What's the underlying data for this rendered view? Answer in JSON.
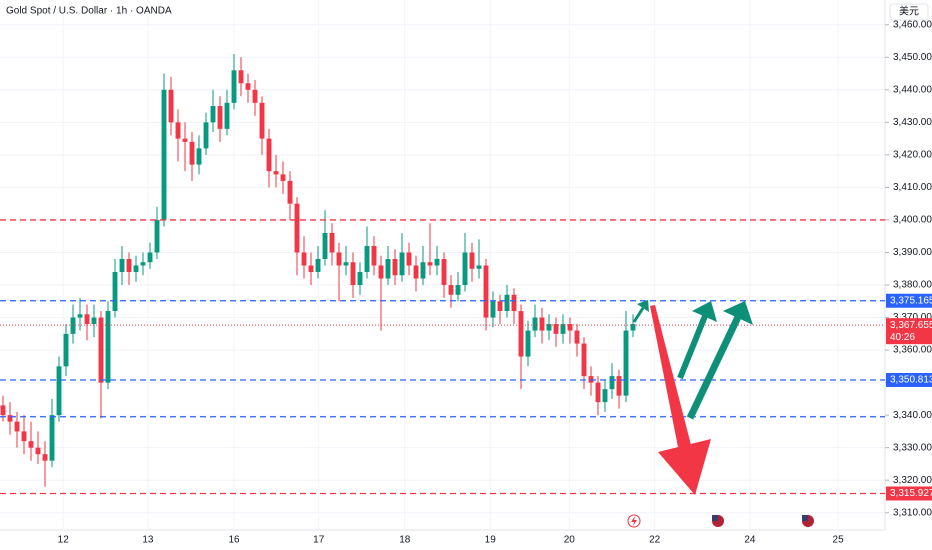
{
  "chart_data": {
    "type": "candlestick",
    "title": "Gold Spot / U.S. Dollar · 1h · OANDA",
    "currency": "美元",
    "up_color": "#089981",
    "down_color": "#f23645",
    "candles": [
      [
        3343,
        3346,
        3338,
        3340
      ],
      [
        3340,
        3344,
        3334,
        3338
      ],
      [
        3338,
        3341,
        3330,
        3335
      ],
      [
        3335,
        3340,
        3328,
        3332
      ],
      [
        3332,
        3338,
        3326,
        3330
      ],
      [
        3330,
        3335,
        3325,
        3328
      ],
      [
        3328,
        3332,
        3318,
        3326
      ],
      [
        3326,
        3345,
        3324,
        3340
      ],
      [
        3340,
        3358,
        3338,
        3355
      ],
      [
        3355,
        3368,
        3352,
        3365
      ],
      [
        3365,
        3374,
        3362,
        3370
      ],
      [
        3370,
        3376,
        3366,
        3371
      ],
      [
        3371,
        3374,
        3363,
        3368
      ],
      [
        3368,
        3374,
        3364,
        3370
      ],
      [
        3370,
        3372,
        3339,
        3350
      ],
      [
        3350,
        3375,
        3348,
        3372
      ],
      [
        3372,
        3388,
        3370,
        3384
      ],
      [
        3384,
        3392,
        3380,
        3388
      ],
      [
        3388,
        3390,
        3380,
        3384
      ],
      [
        3384,
        3389,
        3381,
        3386
      ],
      [
        3386,
        3390,
        3383,
        3387
      ],
      [
        3387,
        3393,
        3385,
        3390
      ],
      [
        3390,
        3404,
        3388,
        3400
      ],
      [
        3400,
        3445,
        3398,
        3440
      ],
      [
        3440,
        3444,
        3426,
        3430
      ],
      [
        3430,
        3434,
        3418,
        3425
      ],
      [
        3425,
        3430,
        3415,
        3424
      ],
      [
        3424,
        3427,
        3412,
        3417
      ],
      [
        3417,
        3426,
        3414,
        3422
      ],
      [
        3422,
        3433,
        3420,
        3430
      ],
      [
        3430,
        3440,
        3427,
        3435
      ],
      [
        3435,
        3438,
        3424,
        3428
      ],
      [
        3428,
        3440,
        3426,
        3436
      ],
      [
        3436,
        3451,
        3434,
        3446
      ],
      [
        3446,
        3450,
        3438,
        3442
      ],
      [
        3442,
        3445,
        3436,
        3440
      ],
      [
        3440,
        3443,
        3432,
        3436
      ],
      [
        3436,
        3438,
        3420,
        3425
      ],
      [
        3425,
        3428,
        3410,
        3415
      ],
      [
        3415,
        3420,
        3410,
        3414
      ],
      [
        3414,
        3418,
        3408,
        3412
      ],
      [
        3412,
        3415,
        3400,
        3405
      ],
      [
        3405,
        3407,
        3383,
        3390
      ],
      [
        3390,
        3395,
        3382,
        3386
      ],
      [
        3386,
        3390,
        3380,
        3384
      ],
      [
        3384,
        3392,
        3382,
        3388
      ],
      [
        3388,
        3403,
        3386,
        3396
      ],
      [
        3396,
        3399,
        3386,
        3390
      ],
      [
        3390,
        3393,
        3375,
        3386
      ],
      [
        3386,
        3392,
        3383,
        3387
      ],
      [
        3387,
        3390,
        3376,
        3380
      ],
      [
        3380,
        3387,
        3377,
        3384
      ],
      [
        3384,
        3398,
        3382,
        3392
      ],
      [
        3392,
        3395,
        3383,
        3386
      ],
      [
        3386,
        3389,
        3366,
        3382
      ],
      [
        3382,
        3392,
        3380,
        3388
      ],
      [
        3388,
        3391,
        3380,
        3383
      ],
      [
        3383,
        3396,
        3381,
        3390
      ],
      [
        3390,
        3393,
        3383,
        3386
      ],
      [
        3386,
        3389,
        3378,
        3382
      ],
      [
        3382,
        3392,
        3380,
        3387
      ],
      [
        3387,
        3399,
        3383,
        3386
      ],
      [
        3386,
        3392,
        3383,
        3388
      ],
      [
        3388,
        3390,
        3376,
        3380
      ],
      [
        3380,
        3383,
        3373,
        3377
      ],
      [
        3377,
        3384,
        3375,
        3380
      ],
      [
        3380,
        3396,
        3378,
        3390
      ],
      [
        3390,
        3393,
        3381,
        3385
      ],
      [
        3385,
        3394,
        3382,
        3386
      ],
      [
        3386,
        3388,
        3366,
        3370
      ],
      [
        3370,
        3378,
        3367,
        3375
      ],
      [
        3375,
        3377,
        3368,
        3372
      ],
      [
        3372,
        3380,
        3370,
        3377
      ],
      [
        3377,
        3379,
        3368,
        3372
      ],
      [
        3372,
        3374,
        3348,
        3358
      ],
      [
        3358,
        3369,
        3355,
        3366
      ],
      [
        3366,
        3374,
        3364,
        3370
      ],
      [
        3370,
        3373,
        3362,
        3366
      ],
      [
        3366,
        3371,
        3363,
        3368
      ],
      [
        3368,
        3370,
        3361,
        3365
      ],
      [
        3365,
        3371,
        3362,
        3368
      ],
      [
        3368,
        3370,
        3362,
        3366
      ],
      [
        3366,
        3368,
        3358,
        3362
      ],
      [
        3362,
        3364,
        3348,
        3352
      ],
      [
        3352,
        3355,
        3346,
        3350
      ],
      [
        3350,
        3352,
        3340,
        3344
      ],
      [
        3344,
        3351,
        3341,
        3348
      ],
      [
        3348,
        3356,
        3345,
        3352
      ],
      [
        3352,
        3354,
        3342,
        3346
      ],
      [
        3346,
        3372,
        3344,
        3366
      ],
      [
        3366,
        3371,
        3364,
        3368
      ]
    ],
    "xlim": [
      -0.43,
      126
    ],
    "xticks": [
      {
        "value": 8.6,
        "label": "12"
      },
      {
        "value": 20.7,
        "label": "13"
      },
      {
        "value": 33,
        "label": "16"
      },
      {
        "value": 45.1,
        "label": "17"
      },
      {
        "value": 57.4,
        "label": "18"
      },
      {
        "value": 69.6,
        "label": "19"
      },
      {
        "value": 80.9,
        "label": "20"
      },
      {
        "value": 93.1,
        "label": "22"
      },
      {
        "value": 106.7,
        "label": "24"
      },
      {
        "value": 119.3,
        "label": "25"
      }
    ],
    "ylim": [
      3304.7,
      3467.6
    ],
    "yticks": [
      {
        "value": 3310,
        "label": "3,310.000"
      },
      {
        "value": 3320,
        "label": "3,320.000"
      },
      {
        "value": 3330,
        "label": "3,330.000"
      },
      {
        "value": 3340,
        "label": "3,340.000"
      },
      {
        "value": 3350,
        "label": "3,350.000"
      },
      {
        "value": 3360,
        "label": "3,360.000"
      },
      {
        "value": 3370,
        "label": "3,370.000"
      },
      {
        "value": 3380,
        "label": "3,380.000"
      },
      {
        "value": 3390,
        "label": "3,390.000"
      },
      {
        "value": 3400,
        "label": "3,400.000"
      },
      {
        "value": 3410,
        "label": "3,410.000"
      },
      {
        "value": 3420,
        "label": "3,420.000"
      },
      {
        "value": 3430,
        "label": "3,430.000"
      },
      {
        "value": 3440,
        "label": "3,440.000"
      },
      {
        "value": 3450,
        "label": "3,450.000"
      },
      {
        "value": 3460,
        "label": "3,460.000"
      }
    ],
    "levels": [
      {
        "value": 3400,
        "color": "#f23645"
      },
      {
        "value": 3375.165,
        "label": "3,375.165",
        "color": "#2962ff"
      },
      {
        "value": 3350.813,
        "label": "3,350.813",
        "color": "#2962ff"
      },
      {
        "value": 3339.5,
        "color": "#2962ff"
      },
      {
        "value": 3315.927,
        "label": "3,315.927",
        "color": "#f23645"
      }
    ],
    "price": {
      "value": 3367.655,
      "label": "3,367.655",
      "countdown": "40:26",
      "color": "#f23645"
    }
  }
}
